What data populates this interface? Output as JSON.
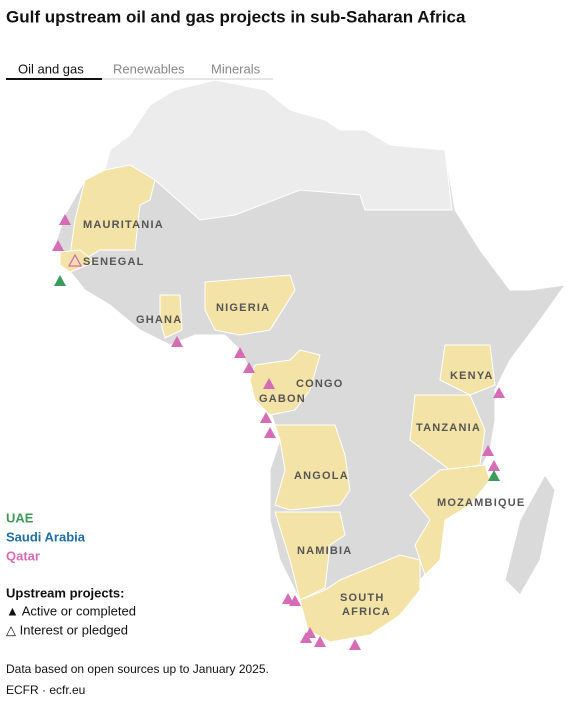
{
  "header": {
    "title": "Gulf upstream oil and gas projects in sub-Saharan Africa"
  },
  "tabs": [
    "Oil and gas",
    "Renewables",
    "Minerals"
  ],
  "map": {
    "labels": [
      "MAURITANIA",
      "SENEGAL",
      "GHANA",
      "NIGERIA",
      "CONGO",
      "GABON",
      "KENYA",
      "TANZANIA",
      "ANGOLA",
      "MOZAMBIQUE",
      "NAMIBIA",
      "SOUTH",
      "AFRICA"
    ]
  },
  "legend": {
    "groups": [
      "UAE",
      "Saudi Arabia",
      "Qatar"
    ],
    "projects_title": "Upstream projects:",
    "projects": [
      "▲ Active or completed",
      "△ Interest or pledged"
    ]
  },
  "footer": {
    "note": "Data based on open sources up to January 2025.",
    "source": "ECFR · ecfr.eu"
  }
}
